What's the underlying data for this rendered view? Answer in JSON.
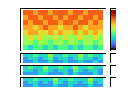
{
  "chart_data": [
    {
      "type": "heatmap",
      "tick_labels": false,
      "color_range": [
        0,
        10
      ],
      "cells": [
        [
          8,
          8,
          7,
          8,
          8,
          7,
          8,
          8,
          8,
          7,
          8,
          8,
          7,
          8,
          8,
          8
        ],
        [
          7,
          8,
          8,
          7,
          8,
          8,
          7,
          8,
          7,
          8,
          8,
          7,
          8,
          8,
          7,
          8
        ],
        [
          8,
          7,
          8,
          8,
          7,
          8,
          8,
          7,
          8,
          8,
          7,
          8,
          8,
          7,
          8,
          7
        ],
        [
          7,
          7,
          6,
          7,
          8,
          7,
          7,
          6,
          7,
          7,
          8,
          7,
          6,
          7,
          7,
          7
        ],
        [
          6,
          7,
          7,
          6,
          6,
          7,
          6,
          7,
          6,
          6,
          7,
          6,
          7,
          6,
          7,
          6
        ],
        [
          5,
          6,
          5,
          6,
          5,
          5,
          6,
          5,
          6,
          5,
          5,
          6,
          5,
          5,
          6,
          5
        ],
        [
          5,
          5,
          4,
          5,
          5,
          4,
          5,
          5,
          4,
          5,
          5,
          4,
          5,
          5,
          4,
          5
        ],
        [
          4,
          3,
          4,
          4,
          3,
          4,
          3,
          4,
          4,
          3,
          4,
          3,
          4,
          4,
          3,
          4
        ]
      ]
    },
    {
      "type": "heatmap",
      "tick_labels": false,
      "color_range": [
        0,
        10
      ],
      "cells": [
        [
          3,
          3,
          4,
          3,
          3,
          5,
          3,
          3,
          4,
          3,
          3,
          5,
          3,
          4,
          3,
          3
        ],
        [
          2,
          3,
          3,
          2,
          3,
          4,
          2,
          3,
          3,
          2,
          3,
          4,
          3,
          3,
          2,
          3
        ],
        [
          2,
          2,
          3,
          2,
          2,
          3,
          2,
          2,
          3,
          2,
          2,
          3,
          2,
          2,
          3,
          2
        ]
      ]
    },
    {
      "type": "heatmap",
      "tick_labels": false,
      "color_range": [
        0,
        10
      ],
      "cells": [
        [
          3,
          4,
          3,
          3,
          5,
          3,
          3,
          4,
          3,
          3,
          5,
          3,
          3,
          4,
          3,
          3
        ],
        [
          3,
          3,
          2,
          3,
          4,
          3,
          2,
          3,
          3,
          2,
          4,
          3,
          2,
          3,
          3,
          2
        ],
        [
          2,
          2,
          2,
          3,
          3,
          2,
          2,
          2,
          3,
          2,
          3,
          2,
          2,
          2,
          3,
          2
        ]
      ]
    },
    {
      "type": "heatmap",
      "tick_labels": false,
      "color_range": [
        0,
        10
      ],
      "cells": [
        [
          3,
          3,
          4,
          3,
          3,
          3,
          5,
          3,
          3,
          4,
          3,
          3,
          3,
          5,
          3,
          3
        ],
        [
          2,
          3,
          3,
          2,
          3,
          2,
          4,
          3,
          2,
          3,
          3,
          2,
          3,
          4,
          2,
          3
        ],
        [
          2,
          2,
          3,
          2,
          2,
          2,
          3,
          2,
          2,
          3,
          2,
          2,
          2,
          3,
          2,
          2
        ]
      ]
    }
  ]
}
